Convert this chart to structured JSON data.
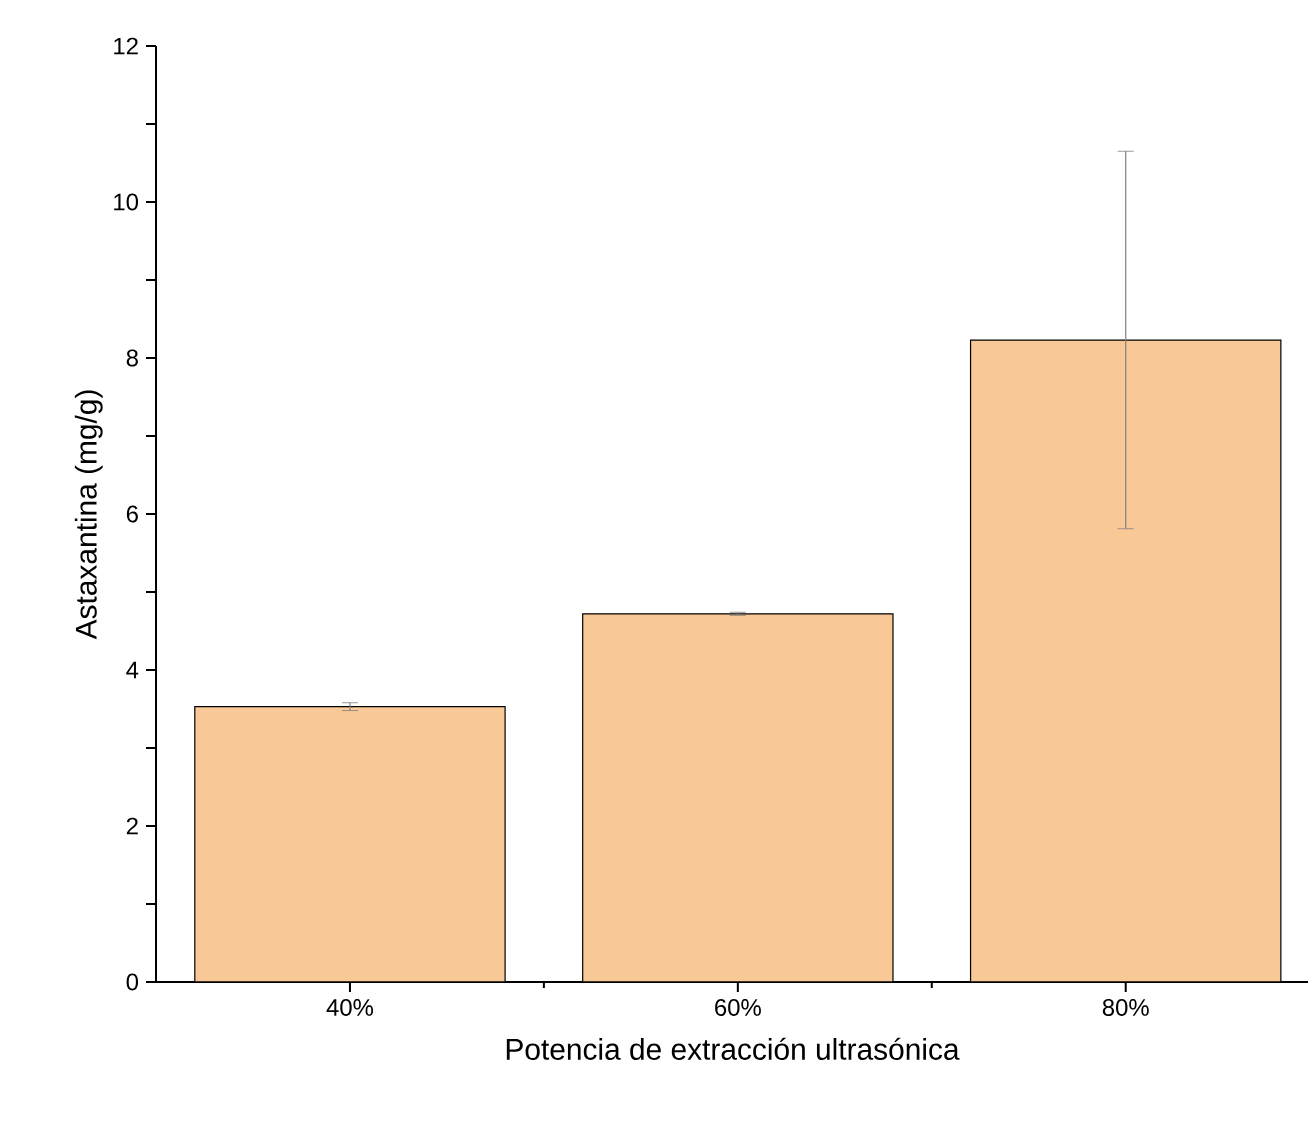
{
  "chart_data": {
    "type": "bar",
    "xlabel": "Potencia de extracción ultrasónica",
    "ylabel": "Astaxantina (mg/g)",
    "categories": [
      "40%",
      "60%",
      "80%"
    ],
    "values": [
      3.53,
      4.72,
      8.23
    ],
    "errors": [
      0.05,
      0.02,
      2.42
    ],
    "color": "#f9c897",
    "ylim": [
      0,
      12
    ],
    "yticks": [
      0,
      {
        "value": 1,
        "label": null
      },
      2,
      {
        "value": 3,
        "label": null
      },
      4,
      {
        "value": 5,
        "label": null
      },
      6,
      {
        "value": 7,
        "label": null
      },
      8,
      {
        "value": 9,
        "label": null
      },
      10,
      {
        "value": 11,
        "label": null
      },
      12
    ],
    "grid": false
  }
}
